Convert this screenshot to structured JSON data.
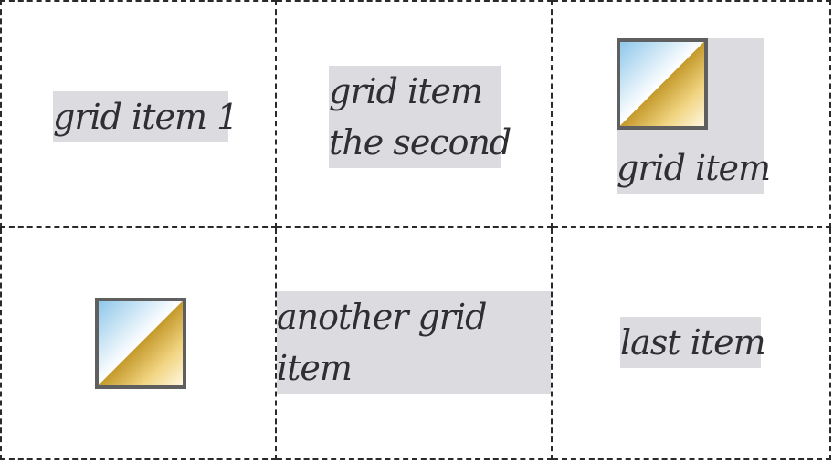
{
  "items": [
    {
      "text_lines": [
        "grid item 1"
      ]
    },
    {
      "text_lines": [
        "grid item",
        "the second"
      ]
    },
    {
      "text_lines": [
        "grid item"
      ],
      "has_image": true
    },
    {
      "has_image": true
    },
    {
      "text_lines": [
        "another grid",
        "item"
      ]
    },
    {
      "text_lines": [
        "last item"
      ]
    }
  ]
}
